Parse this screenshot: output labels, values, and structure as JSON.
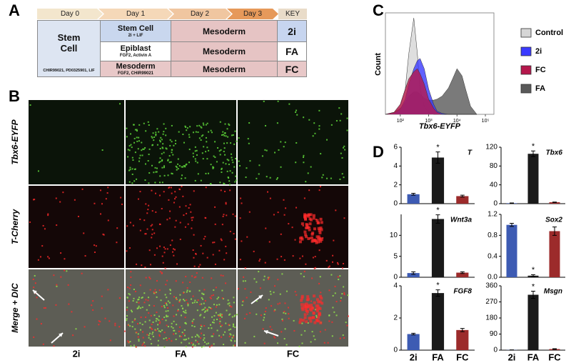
{
  "panel_labels": [
    "A",
    "B",
    "C",
    "D"
  ],
  "timeline": {
    "header": [
      "Day 0",
      "Day 1",
      "Day 2",
      "Day 3",
      "KEY"
    ],
    "day0": {
      "label": "Stem Cell",
      "note": "CHIR99021, PD0325901, LIF"
    },
    "rows": [
      {
        "day1": "Stem Cell",
        "day1_note": "2i + LIF",
        "day23": "Mesoderm",
        "key": "2i"
      },
      {
        "day1": "Epiblast",
        "day1_note": "FGF2, Activin A",
        "day23": "Mesoderm",
        "key": "FA"
      },
      {
        "day1": "Mesoderm",
        "day1_note": "FGF2, CHIR99021",
        "day23": "Mesoderm",
        "key": "FC"
      }
    ]
  },
  "images": {
    "rows": [
      "Tbx6-EYFP",
      "T-Cherry",
      "Merge + DIC"
    ],
    "columns": [
      "2i",
      "FA",
      "FC"
    ]
  },
  "chart_data": [
    {
      "type": "area",
      "xlabel": "Tbx6-EYFP",
      "ylabel": "Count",
      "xscale": "log",
      "legend": "right",
      "x": [
        30,
        60,
        100,
        150,
        200,
        300,
        400,
        500,
        700,
        1000,
        1500,
        2000,
        3000,
        5000,
        7000,
        10000,
        15000,
        20000,
        30000,
        50000
      ],
      "xlim": [
        30,
        200000
      ],
      "xticks": [
        {
          "value": 100,
          "label": "10²"
        },
        {
          "value": 1000,
          "label": "10³"
        },
        {
          "value": 10000,
          "label": "10⁴"
        },
        {
          "value": 100000,
          "label": "10⁵"
        }
      ],
      "ylim": [
        0,
        100
      ],
      "series": [
        {
          "name": "Control",
          "color": "#d6d6d6",
          "values": [
            0,
            2,
            8,
            25,
            60,
            95,
            60,
            25,
            8,
            2,
            0,
            0,
            0,
            0,
            0,
            0,
            0,
            0,
            0,
            0
          ]
        },
        {
          "name": "2i",
          "color": "#3a3aff",
          "values": [
            0,
            1,
            5,
            15,
            30,
            45,
            53,
            55,
            45,
            25,
            10,
            3,
            1,
            0,
            0,
            0,
            0,
            0,
            0,
            0
          ]
        },
        {
          "name": "FC",
          "color": "#b5184c",
          "values": [
            0,
            2,
            10,
            25,
            35,
            42,
            45,
            40,
            30,
            15,
            6,
            2,
            0,
            0,
            0,
            0,
            0,
            0,
            0,
            0
          ]
        },
        {
          "name": "FA",
          "color": "#595959",
          "values": [
            0,
            2,
            6,
            12,
            18,
            22,
            22,
            20,
            16,
            14,
            14,
            15,
            18,
            26,
            35,
            45,
            38,
            25,
            8,
            0
          ]
        }
      ]
    },
    {
      "type": "bar",
      "title": "T",
      "categories": [
        null,
        null,
        null
      ],
      "colors": [
        "#3d5bb3",
        "#1a1a1a",
        "#9c2b2b"
      ],
      "values": [
        1.0,
        4.9,
        0.8
      ],
      "errors": [
        0.1,
        0.6,
        0.1
      ],
      "significance": [
        null,
        "*",
        null
      ],
      "ylim": [
        0,
        6
      ],
      "yticks": [
        0,
        2,
        4,
        6
      ]
    },
    {
      "type": "bar",
      "title": "Tbx6",
      "categories": [
        null,
        null,
        null
      ],
      "colors": [
        "#3d5bb3",
        "#1a1a1a",
        "#9c2b2b"
      ],
      "values": [
        1,
        106,
        3
      ],
      "errors": [
        0.5,
        6,
        0.5
      ],
      "significance": [
        null,
        "*",
        null
      ],
      "ylim": [
        0,
        120
      ],
      "yticks": [
        0,
        40,
        80,
        120
      ]
    },
    {
      "type": "bar",
      "title": "Wnt3a",
      "categories": [
        null,
        null,
        null
      ],
      "colors": [
        "#3d5bb3",
        "#1a1a1a",
        "#9c2b2b"
      ],
      "values": [
        1.0,
        13.9,
        1.1
      ],
      "errors": [
        0.3,
        1.0,
        0.2
      ],
      "significance": [
        null,
        "*",
        null
      ],
      "ylim": [
        0,
        15
      ],
      "yticks": [
        0,
        5,
        10
      ]
    },
    {
      "type": "bar",
      "title": "Sox2",
      "categories": [
        null,
        null,
        null
      ],
      "colors": [
        "#3d5bb3",
        "#1a1a1a",
        "#9c2b2b"
      ],
      "values": [
        1.0,
        0.03,
        0.88
      ],
      "errors": [
        0.03,
        0.02,
        0.08
      ],
      "significance": [
        null,
        "*",
        null
      ],
      "ylim": [
        0,
        1.2
      ],
      "yticks": [
        {
          "value": 0,
          "label": "0.0"
        },
        0.4,
        0.8,
        1.2
      ]
    },
    {
      "type": "bar",
      "title": "FGF8",
      "categories": [
        "2i",
        "FA",
        "FC"
      ],
      "colors": [
        "#3d5bb3",
        "#1a1a1a",
        "#9c2b2b"
      ],
      "values": [
        1.0,
        3.55,
        1.25
      ],
      "errors": [
        0.05,
        0.2,
        0.1
      ],
      "significance": [
        null,
        "*",
        null
      ],
      "ylim": [
        0,
        4
      ],
      "yticks": [
        0,
        2,
        4
      ]
    },
    {
      "type": "bar",
      "title": "Msgn",
      "categories": [
        "2i",
        "FA",
        "FC"
      ],
      "colors": [
        "#3d5bb3",
        "#1a1a1a",
        "#9c2b2b"
      ],
      "values": [
        1,
        310,
        6
      ],
      "errors": [
        0.5,
        20,
        2
      ],
      "significance": [
        null,
        "*",
        null
      ],
      "ylim": [
        0,
        360
      ],
      "yticks": [
        0,
        90,
        180,
        270,
        360
      ]
    }
  ]
}
